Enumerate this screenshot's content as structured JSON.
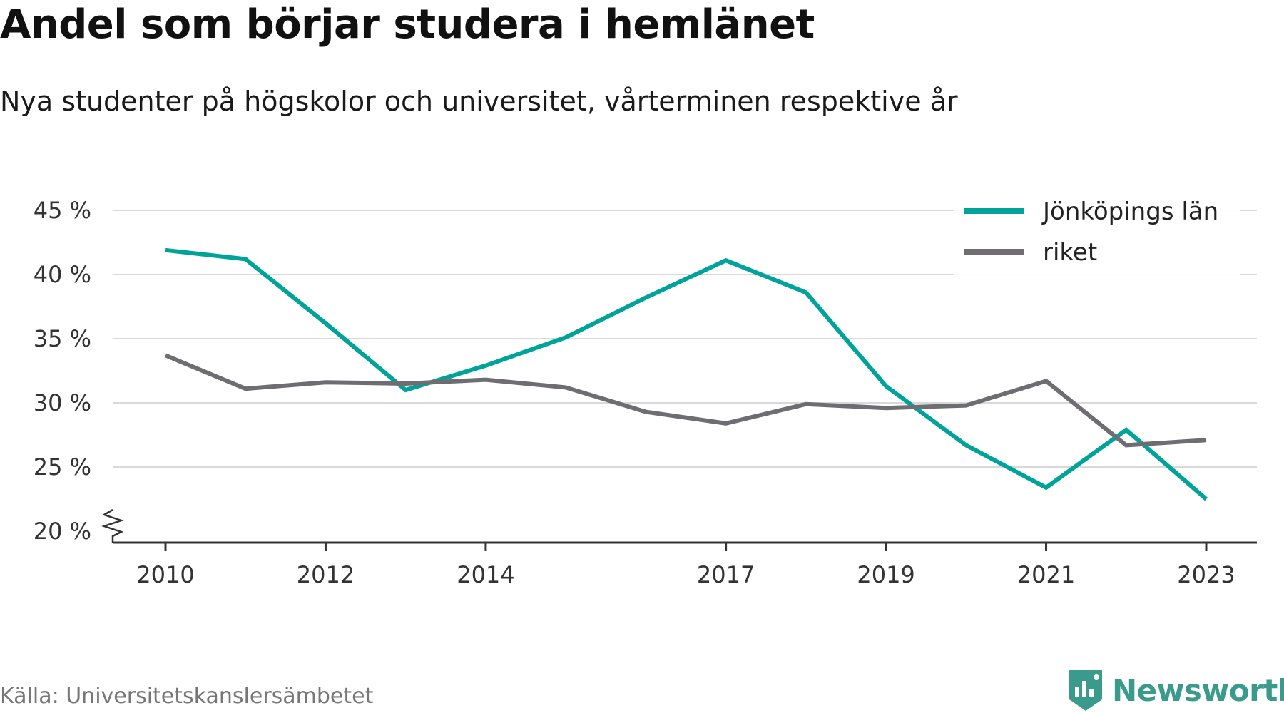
{
  "title": "Andel som börjar studera i hemlänet",
  "subtitle": "Nya studenter på högskolor och universitet, vårterminen respektive år",
  "source": "Källa: Universitetskanslersämbetet",
  "brand": {
    "name": "Newsworthy",
    "icon": "newsworthy-logo-icon",
    "color": "#3a9a8b"
  },
  "chart_data": {
    "type": "line",
    "x": [
      2010,
      2011,
      2012,
      2013,
      2014,
      2015,
      2016,
      2017,
      2018,
      2019,
      2020,
      2021,
      2022,
      2023
    ],
    "x_tick_labels": [
      "2010",
      "2012",
      "2014",
      "2017",
      "2019",
      "2021",
      "2023"
    ],
    "y_tick_labels": [
      "20 %",
      "25 %",
      "30 %",
      "35 %",
      "40 %",
      "45 %"
    ],
    "ylim": [
      20,
      45
    ],
    "y_axis_break": true,
    "grid": true,
    "legend_position": "top-right",
    "series": [
      {
        "name": "Jönköpings län",
        "color": "#00a39a",
        "values": [
          41.9,
          41.2,
          36.2,
          31.0,
          32.9,
          35.1,
          38.2,
          41.1,
          38.6,
          31.3,
          26.7,
          23.4,
          27.9,
          22.5
        ]
      },
      {
        "name": "riket",
        "color": "#6f6d72",
        "values": [
          33.7,
          31.1,
          31.6,
          31.5,
          31.8,
          31.2,
          29.3,
          28.4,
          29.9,
          29.6,
          29.8,
          31.7,
          26.7,
          27.1
        ]
      }
    ]
  }
}
